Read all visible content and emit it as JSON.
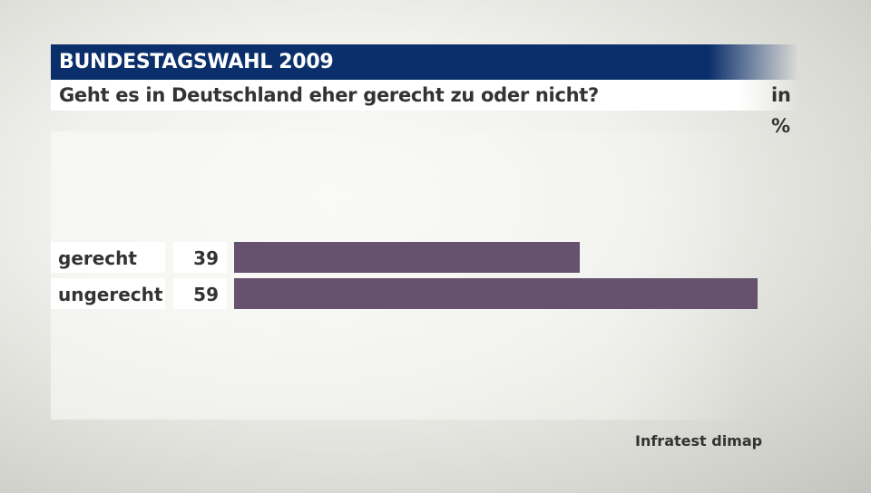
{
  "header": {
    "title": "BUNDESTAGSWAHL 2009"
  },
  "subtitle": {
    "question": "Geht es in Deutschland eher gerecht zu oder nicht?",
    "unit": "in %"
  },
  "source": "Infratest dimap",
  "colors": {
    "header": "#0b2f6b",
    "bar": "#66526f"
  },
  "chart_data": {
    "type": "bar",
    "orientation": "horizontal",
    "categories": [
      "gerecht",
      "ungerecht"
    ],
    "values": [
      39,
      59
    ],
    "data_labels": [
      "39",
      "59"
    ],
    "title": "Geht es in Deutschland eher gerecht zu oder nicht?",
    "unit": "in %",
    "grid": false
  }
}
